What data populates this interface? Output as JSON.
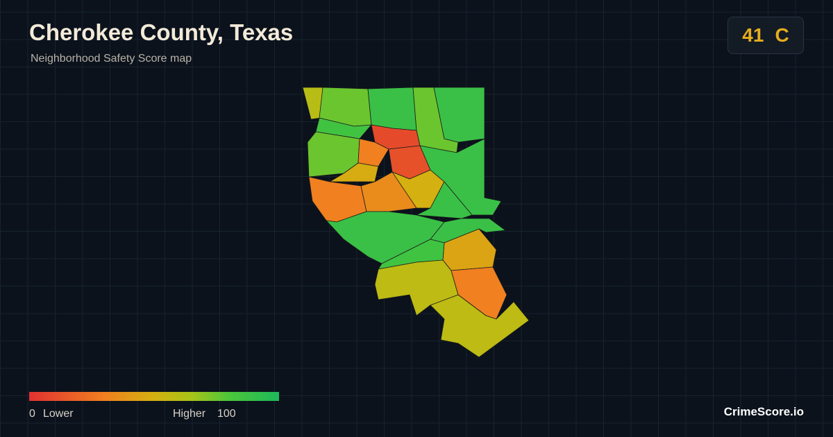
{
  "header": {
    "title": "Cherokee County, Texas",
    "subtitle": "Neighborhood Safety Score map"
  },
  "badge": {
    "score": 41,
    "grade": "C"
  },
  "legend": {
    "min": 0,
    "min_label": "Lower",
    "max_label": "Higher",
    "max": 100
  },
  "region_scores": [
    60,
    75,
    88,
    75,
    88,
    85,
    75,
    10,
    12,
    30,
    48,
    30,
    35,
    50,
    88,
    88,
    88,
    88,
    45,
    85,
    58,
    30,
    58
  ],
  "brand": "CrimeScore.io"
}
